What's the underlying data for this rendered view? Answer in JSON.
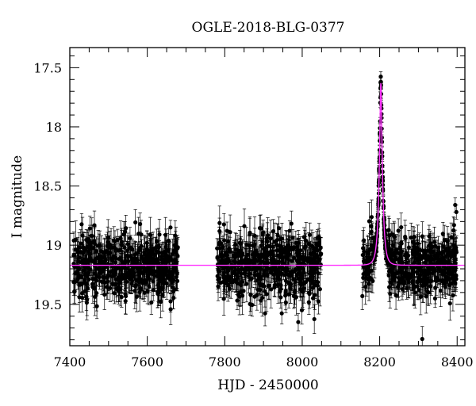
{
  "chart_data": {
    "type": "scatter",
    "title": "OGLE-2018-BLG-0377",
    "xlabel": "HJD - 2450000",
    "ylabel": "I magnitude",
    "xlim": [
      7400,
      8420
    ],
    "ylim": [
      19.85,
      17.33
    ],
    "y_inverted": true,
    "x_ticks": [
      7400,
      7600,
      7800,
      8000,
      8200,
      8400
    ],
    "x_tick_labels": [
      "7400",
      "7600",
      "7800",
      "8000",
      "8200",
      "8400"
    ],
    "y_ticks": [
      17.5,
      18,
      18.5,
      19,
      19.5
    ],
    "y_tick_labels": [
      "17.5",
      "18",
      "18.5",
      "19",
      "19.5"
    ],
    "grid": false,
    "legend": "none",
    "colors": {
      "points": "#000000",
      "model": "#ff33ff"
    },
    "series": [
      {
        "kind": "observations",
        "seasons": [
          {
            "x_range": [
              7410,
              7680
            ],
            "median_mag": 19.17,
            "scatter": 0.13
          },
          {
            "x_range": [
              7780,
              8050
            ],
            "median_mag": 19.17,
            "scatter": 0.14
          },
          {
            "x_range": [
              8155,
              8400
            ],
            "median_mag": 19.17,
            "scatter": 0.12
          }
        ],
        "peak": {
          "t0": 8203,
          "peak_mag": 17.62
        },
        "bright_points": [
          [
            8395,
            18.66
          ],
          [
            8398,
            18.72
          ],
          [
            8392,
            18.83
          ],
          [
            7660,
            18.85
          ]
        ]
      },
      {
        "kind": "model",
        "baseline_mag": 19.17,
        "t0": 8203,
        "tE": 9,
        "peak_mag": 17.63
      }
    ]
  }
}
